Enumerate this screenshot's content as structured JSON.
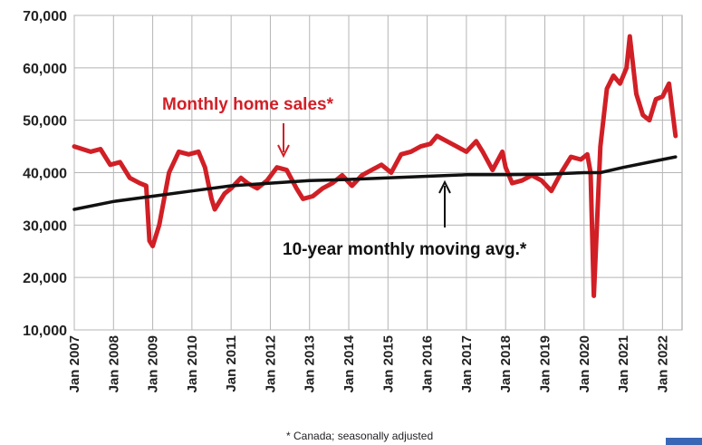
{
  "chart_data": {
    "type": "line",
    "ylim": [
      10000,
      70000
    ],
    "y_ticks": [
      "10,000",
      "20,000",
      "30,000",
      "40,000",
      "50,000",
      "60,000",
      "70,000"
    ],
    "x_ticks": [
      "Jan 2007",
      "Jan 2008",
      "Jan 2009",
      "Jan 2010",
      "Jan 2011",
      "Jan 2012",
      "Jan 2013",
      "Jan 2014",
      "Jan 2015",
      "Jan 2016",
      "Jan 2017",
      "Jan 2018",
      "Jan 2019",
      "Jan 2020",
      "Jan 2021",
      "Jan 2022"
    ],
    "grid": true,
    "series": [
      {
        "name": "Monthly home sales*",
        "color": "#d11f26",
        "points": [
          [
            "2007-01",
            45000
          ],
          [
            "2007-06",
            44000
          ],
          [
            "2007-09",
            44500
          ],
          [
            "2007-12",
            41500
          ],
          [
            "2008-03",
            42000
          ],
          [
            "2008-06",
            39000
          ],
          [
            "2008-09",
            38000
          ],
          [
            "2008-11",
            37500
          ],
          [
            "2008-12",
            27000
          ],
          [
            "2009-01",
            26000
          ],
          [
            "2009-03",
            30000
          ],
          [
            "2009-06",
            40000
          ],
          [
            "2009-09",
            44000
          ],
          [
            "2009-12",
            43500
          ],
          [
            "2010-03",
            44000
          ],
          [
            "2010-05",
            41000
          ],
          [
            "2010-07",
            35000
          ],
          [
            "2010-08",
            33000
          ],
          [
            "2010-11",
            36000
          ],
          [
            "2011-01",
            37000
          ],
          [
            "2011-04",
            39000
          ],
          [
            "2011-06",
            38000
          ],
          [
            "2011-09",
            37000
          ],
          [
            "2011-12",
            38500
          ],
          [
            "2012-03",
            41000
          ],
          [
            "2012-06",
            40500
          ],
          [
            "2012-09",
            37000
          ],
          [
            "2012-11",
            35000
          ],
          [
            "2013-02",
            35500
          ],
          [
            "2013-05",
            37000
          ],
          [
            "2013-08",
            38000
          ],
          [
            "2013-11",
            39500
          ],
          [
            "2014-02",
            37500
          ],
          [
            "2014-05",
            39500
          ],
          [
            "2014-08",
            40500
          ],
          [
            "2014-11",
            41500
          ],
          [
            "2015-02",
            40000
          ],
          [
            "2015-05",
            43500
          ],
          [
            "2015-08",
            44000
          ],
          [
            "2015-11",
            45000
          ],
          [
            "2016-02",
            45500
          ],
          [
            "2016-04",
            47000
          ],
          [
            "2016-07",
            46000
          ],
          [
            "2016-10",
            45000
          ],
          [
            "2017-01",
            44000
          ],
          [
            "2017-04",
            46000
          ],
          [
            "2017-06",
            44000
          ],
          [
            "2017-09",
            40500
          ],
          [
            "2017-12",
            44000
          ],
          [
            "2018-01",
            41000
          ],
          [
            "2018-03",
            38000
          ],
          [
            "2018-06",
            38500
          ],
          [
            "2018-09",
            39500
          ],
          [
            "2018-12",
            38500
          ],
          [
            "2019-03",
            36500
          ],
          [
            "2019-06",
            40000
          ],
          [
            "2019-09",
            43000
          ],
          [
            "2019-12",
            42500
          ],
          [
            "2020-02",
            43500
          ],
          [
            "2020-03",
            40000
          ],
          [
            "2020-04",
            16500
          ],
          [
            "2020-06",
            45000
          ],
          [
            "2020-08",
            56000
          ],
          [
            "2020-10",
            58500
          ],
          [
            "2020-12",
            57000
          ],
          [
            "2021-02",
            60000
          ],
          [
            "2021-03",
            66000
          ],
          [
            "2021-05",
            55000
          ],
          [
            "2021-07",
            51000
          ],
          [
            "2021-09",
            50000
          ],
          [
            "2021-11",
            54000
          ],
          [
            "2022-01",
            54500
          ],
          [
            "2022-03",
            57000
          ],
          [
            "2022-05",
            47000
          ]
        ]
      },
      {
        "name": "10-year monthly moving avg.*",
        "color": "#111111",
        "points": [
          [
            "2007-01",
            33000
          ],
          [
            "2008-01",
            34500
          ],
          [
            "2009-01",
            35500
          ],
          [
            "2010-01",
            36500
          ],
          [
            "2011-01",
            37500
          ],
          [
            "2012-01",
            38000
          ],
          [
            "2013-01",
            38500
          ],
          [
            "2014-01",
            38700
          ],
          [
            "2015-01",
            39000
          ],
          [
            "2016-01",
            39300
          ],
          [
            "2017-01",
            39600
          ],
          [
            "2018-01",
            39600
          ],
          [
            "2019-01",
            39700
          ],
          [
            "2020-01",
            40000
          ],
          [
            "2020-06",
            40000
          ],
          [
            "2021-01",
            41000
          ],
          [
            "2022-01",
            42500
          ],
          [
            "2022-05",
            43000
          ]
        ]
      }
    ],
    "annotations": {
      "sales_label": "Monthly home sales*",
      "avg_label": "10-year monthly moving avg.*",
      "footnote": "* Canada; seasonally adjusted"
    }
  }
}
